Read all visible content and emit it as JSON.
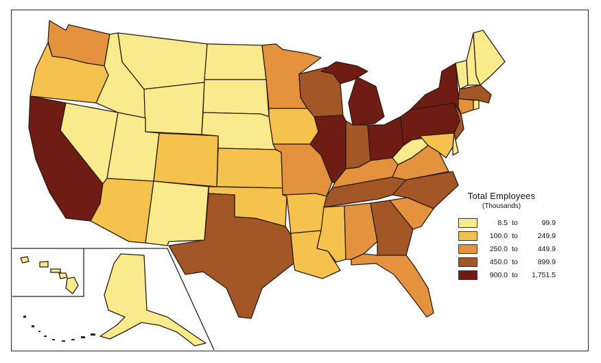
{
  "legend": {
    "title": "Total Employees",
    "subtitle": "(Thousands)",
    "to_word": "to",
    "classes": [
      {
        "low": "8.5",
        "high": "99.9",
        "color": "#f9eb8c"
      },
      {
        "low": "100.0",
        "high": "249.9",
        "color": "#f6c24e"
      },
      {
        "low": "250.0",
        "high": "449.9",
        "color": "#e4923d"
      },
      {
        "low": "450.0",
        "high": "899.9",
        "color": "#a45726"
      },
      {
        "low": "900.0",
        "high": "1,751.5",
        "color": "#6e1c14"
      }
    ]
  },
  "states": {
    "WA": 2,
    "OR": 1,
    "CA": 4,
    "NV": 0,
    "ID": 0,
    "MT": 0,
    "WY": 0,
    "UT": 0,
    "CO": 1,
    "AZ": 1,
    "NM": 0,
    "ND": 0,
    "SD": 0,
    "NE": 0,
    "KS": 1,
    "OK": 1,
    "TX": 3,
    "MN": 2,
    "IA": 1,
    "MO": 2,
    "AR": 1,
    "LA": 1,
    "WI": 3,
    "IL": 4,
    "MI": 4,
    "IN": 3,
    "OH": 4,
    "KY": 2,
    "TN": 3,
    "MS": 1,
    "AL": 2,
    "GA": 3,
    "FL": 2,
    "SC": 2,
    "NC": 3,
    "VA": 2,
    "WV": 0,
    "PA": 4,
    "NY": 4,
    "ME": 0,
    "VT": 0,
    "NH": 0,
    "MA": 3,
    "NJ": 3,
    "MD": 1,
    "DE": 0,
    "CT": 2,
    "RI": 0,
    "AK": 0,
    "HI": 0
  }
}
